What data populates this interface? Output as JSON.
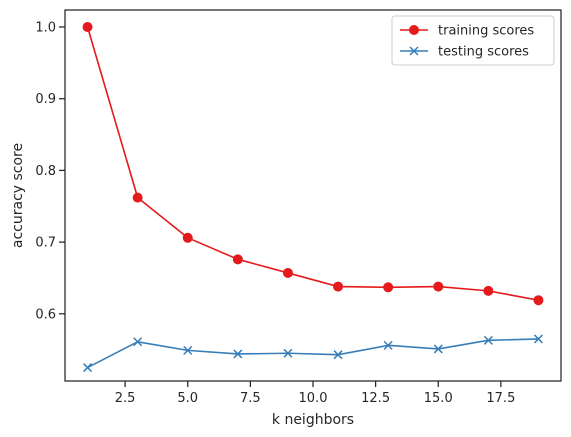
{
  "chart_data": {
    "type": "line",
    "xlabel": "k neighbors",
    "ylabel": "accuracy score",
    "xlim": [
      0.1,
      19.9
    ],
    "ylim": [
      0.5063,
      1.0237
    ],
    "xticks": [
      2.5,
      5.0,
      7.5,
      10.0,
      12.5,
      15.0,
      17.5
    ],
    "xtick_labels": [
      "2.5",
      "5.0",
      "7.5",
      "10.0",
      "12.5",
      "15.0",
      "17.5"
    ],
    "yticks": [
      0.6,
      0.7,
      0.8,
      0.9,
      1.0
    ],
    "ytick_labels": [
      "0.6",
      "0.7",
      "0.8",
      "0.9",
      "1.0"
    ],
    "grid": false,
    "legend_position": "top-right",
    "series": [
      {
        "name": "training scores",
        "color": "#e41a1c",
        "marker": "circle",
        "x": [
          1,
          3,
          5,
          7,
          9,
          11,
          13,
          15,
          17,
          19
        ],
        "y": [
          1.0,
          0.762,
          0.706,
          0.676,
          0.657,
          0.638,
          0.637,
          0.638,
          0.632,
          0.619
        ]
      },
      {
        "name": "testing scores",
        "color": "#377eb8",
        "marker": "x",
        "x": [
          1,
          3,
          5,
          7,
          9,
          11,
          13,
          15,
          17,
          19
        ],
        "y": [
          0.525,
          0.561,
          0.549,
          0.544,
          0.545,
          0.543,
          0.556,
          0.551,
          0.563,
          0.565
        ]
      }
    ]
  }
}
